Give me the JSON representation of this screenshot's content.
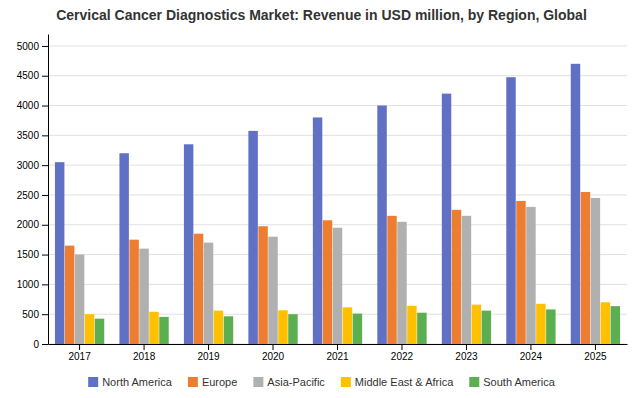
{
  "chart_data": {
    "type": "bar",
    "title": "Cervical Cancer Diagnostics Market: Revenue in USD million, by Region, Global",
    "categories": [
      "2017",
      "2018",
      "2019",
      "2020",
      "2021",
      "2022",
      "2023",
      "2024",
      "2025"
    ],
    "series": [
      {
        "name": "North America",
        "color": "#6070c4",
        "values": [
          3050,
          3200,
          3350,
          3575,
          3800,
          4000,
          4200,
          4475,
          4700
        ]
      },
      {
        "name": "Europe",
        "color": "#ed7d31",
        "values": [
          1650,
          1750,
          1850,
          1975,
          2075,
          2150,
          2250,
          2400,
          2550
        ]
      },
      {
        "name": "Asia-Pacific",
        "color": "#b0b0b0",
        "values": [
          1500,
          1600,
          1700,
          1800,
          1950,
          2050,
          2150,
          2300,
          2450
        ]
      },
      {
        "name": "Middle East & Africa",
        "color": "#ffc000",
        "values": [
          500,
          540,
          560,
          565,
          615,
          640,
          660,
          675,
          700
        ]
      },
      {
        "name": "South America",
        "color": "#5baf50",
        "values": [
          425,
          455,
          465,
          500,
          510,
          525,
          560,
          580,
          635
        ]
      }
    ],
    "ylim": [
      0,
      5200
    ],
    "yticks": [
      0,
      500,
      1000,
      1500,
      2000,
      2500,
      3000,
      3500,
      4000,
      4500,
      5000
    ],
    "grid": true,
    "legend": "bottom"
  }
}
